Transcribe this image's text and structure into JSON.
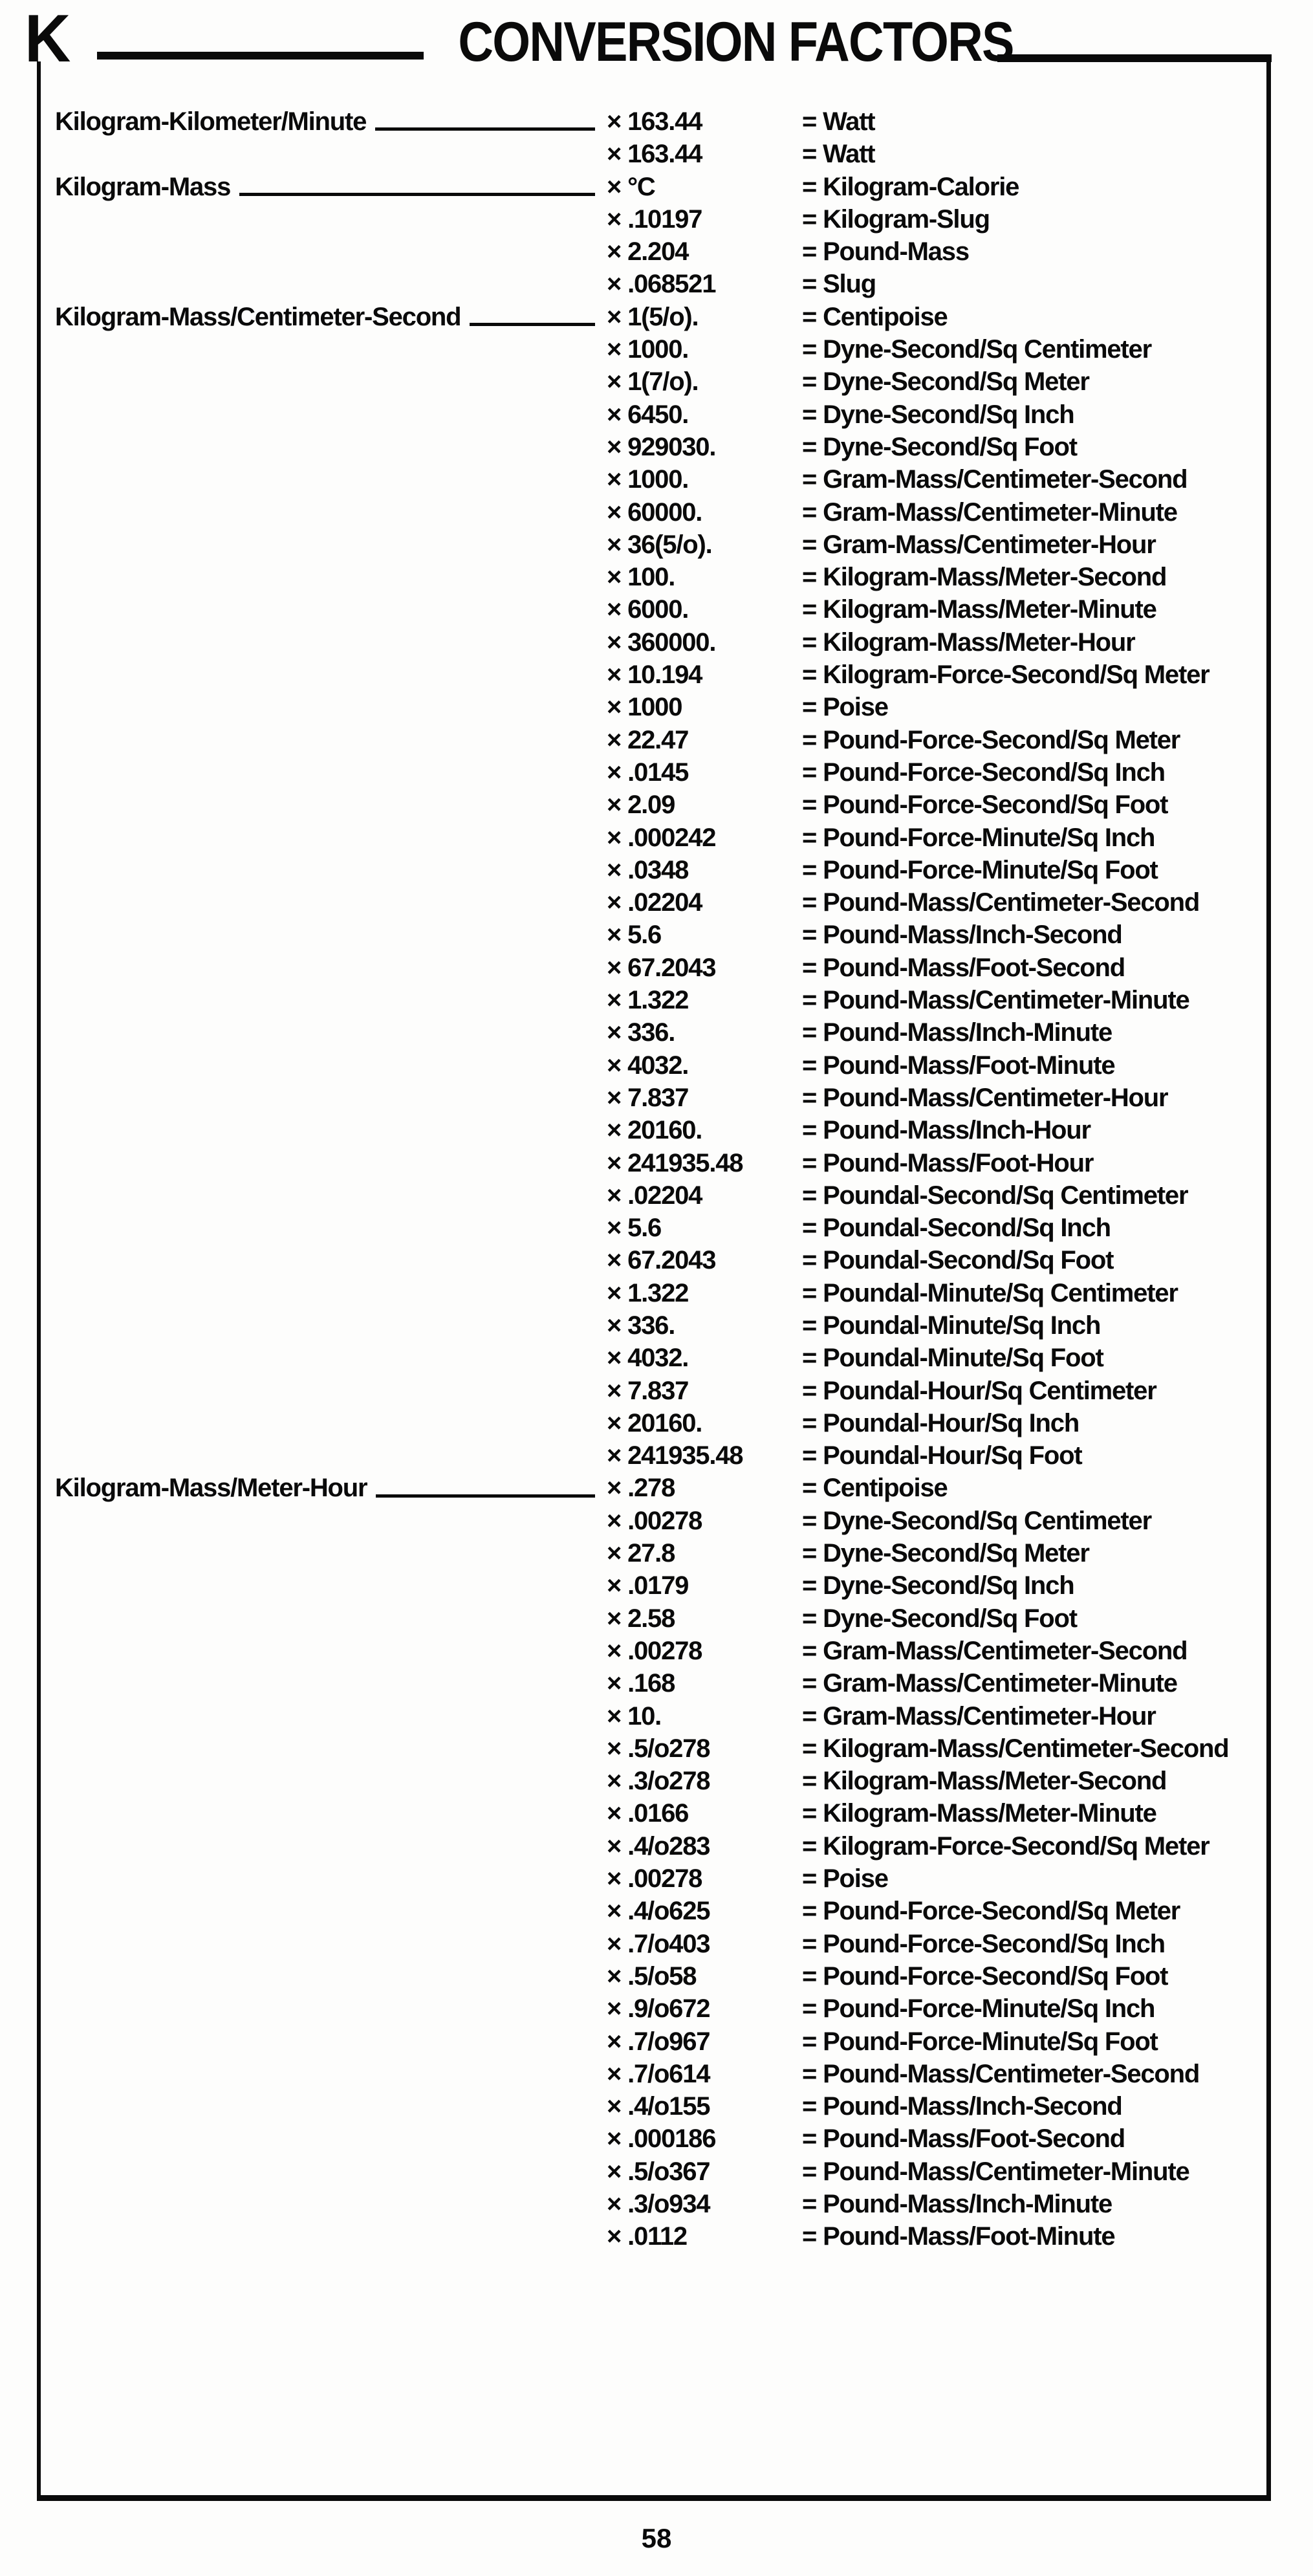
{
  "page": {
    "section_letter": "K",
    "title": "CONVERSION FACTORS",
    "page_number": "58"
  },
  "table": {
    "multiply_sign": "×",
    "equals_sign": "=",
    "rows": [
      {
        "label": "Kilogram-Kilometer/Minute",
        "factor": "163.44",
        "result": "Watt"
      },
      {
        "label": "",
        "factor": "163.44",
        "result": "Watt"
      },
      {
        "label": "Kilogram-Mass",
        "factor": "°C",
        "result": "Kilogram-Calorie"
      },
      {
        "label": "",
        "factor": ".10197",
        "result": "Kilogram-Slug"
      },
      {
        "label": "",
        "factor": "2.204",
        "result": "Pound-Mass"
      },
      {
        "label": "",
        "factor": ".068521",
        "result": "Slug"
      },
      {
        "label": "Kilogram-Mass/Centimeter-Second",
        "factor": "1(5/o).",
        "result": "Centipoise"
      },
      {
        "label": "",
        "factor": "1000.",
        "result": "Dyne-Second/Sq Centimeter"
      },
      {
        "label": "",
        "factor": "1(7/o).",
        "result": "Dyne-Second/Sq Meter"
      },
      {
        "label": "",
        "factor": "6450.",
        "result": "Dyne-Second/Sq Inch"
      },
      {
        "label": "",
        "factor": "929030.",
        "result": "Dyne-Second/Sq Foot"
      },
      {
        "label": "",
        "factor": "1000.",
        "result": "Gram-Mass/Centimeter-Second"
      },
      {
        "label": "",
        "factor": "60000.",
        "result": "Gram-Mass/Centimeter-Minute"
      },
      {
        "label": "",
        "factor": "36(5/o).",
        "result": "Gram-Mass/Centimeter-Hour"
      },
      {
        "label": "",
        "factor": "100.",
        "result": "Kilogram-Mass/Meter-Second"
      },
      {
        "label": "",
        "factor": "6000.",
        "result": "Kilogram-Mass/Meter-Minute"
      },
      {
        "label": "",
        "factor": "360000.",
        "result": "Kilogram-Mass/Meter-Hour"
      },
      {
        "label": "",
        "factor": "10.194",
        "result": "Kilogram-Force-Second/Sq Meter"
      },
      {
        "label": "",
        "factor": "1000",
        "result": "Poise"
      },
      {
        "label": "",
        "factor": "22.47",
        "result": "Pound-Force-Second/Sq Meter"
      },
      {
        "label": "",
        "factor": ".0145",
        "result": "Pound-Force-Second/Sq Inch"
      },
      {
        "label": "",
        "factor": "2.09",
        "result": "Pound-Force-Second/Sq Foot"
      },
      {
        "label": "",
        "factor": ".000242",
        "result": "Pound-Force-Minute/Sq Inch"
      },
      {
        "label": "",
        "factor": ".0348",
        "result": "Pound-Force-Minute/Sq Foot"
      },
      {
        "label": "",
        "factor": ".02204",
        "result": "Pound-Mass/Centimeter-Second"
      },
      {
        "label": "",
        "factor": "5.6",
        "result": "Pound-Mass/Inch-Second"
      },
      {
        "label": "",
        "factor": "67.2043",
        "result": "Pound-Mass/Foot-Second"
      },
      {
        "label": "",
        "factor": "1.322",
        "result": "Pound-Mass/Centimeter-Minute"
      },
      {
        "label": "",
        "factor": "336.",
        "result": "Pound-Mass/Inch-Minute"
      },
      {
        "label": "",
        "factor": "4032.",
        "result": "Pound-Mass/Foot-Minute"
      },
      {
        "label": "",
        "factor": "7.837",
        "result": "Pound-Mass/Centimeter-Hour"
      },
      {
        "label": "",
        "factor": "20160.",
        "result": "Pound-Mass/Inch-Hour"
      },
      {
        "label": "",
        "factor": "241935.48",
        "result": "Pound-Mass/Foot-Hour"
      },
      {
        "label": "",
        "factor": ".02204",
        "result": "Poundal-Second/Sq Centimeter"
      },
      {
        "label": "",
        "factor": "5.6",
        "result": "Poundal-Second/Sq Inch"
      },
      {
        "label": "",
        "factor": "67.2043",
        "result": "Poundal-Second/Sq Foot"
      },
      {
        "label": "",
        "factor": "1.322",
        "result": "Poundal-Minute/Sq Centimeter"
      },
      {
        "label": "",
        "factor": "336.",
        "result": "Poundal-Minute/Sq Inch"
      },
      {
        "label": "",
        "factor": "4032.",
        "result": "Poundal-Minute/Sq Foot"
      },
      {
        "label": "",
        "factor": "7.837",
        "result": "Poundal-Hour/Sq Centimeter"
      },
      {
        "label": "",
        "factor": "20160.",
        "result": "Poundal-Hour/Sq Inch"
      },
      {
        "label": "",
        "factor": "241935.48",
        "result": "Poundal-Hour/Sq Foot"
      },
      {
        "label": "Kilogram-Mass/Meter-Hour",
        "factor": ".278",
        "result": "Centipoise"
      },
      {
        "label": "",
        "factor": ".00278",
        "result": "Dyne-Second/Sq Centimeter"
      },
      {
        "label": "",
        "factor": "27.8",
        "result": "Dyne-Second/Sq Meter"
      },
      {
        "label": "",
        "factor": ".0179",
        "result": "Dyne-Second/Sq Inch"
      },
      {
        "label": "",
        "factor": "2.58",
        "result": "Dyne-Second/Sq Foot"
      },
      {
        "label": "",
        "factor": ".00278",
        "result": "Gram-Mass/Centimeter-Second"
      },
      {
        "label": "",
        "factor": ".168",
        "result": "Gram-Mass/Centimeter-Minute"
      },
      {
        "label": "",
        "factor": "10.",
        "result": "Gram-Mass/Centimeter-Hour"
      },
      {
        "label": "",
        "factor": ".5/o278",
        "result": "Kilogram-Mass/Centimeter-Second"
      },
      {
        "label": "",
        "factor": ".3/o278",
        "result": "Kilogram-Mass/Meter-Second"
      },
      {
        "label": "",
        "factor": ".0166",
        "result": "Kilogram-Mass/Meter-Minute"
      },
      {
        "label": "",
        "factor": ".4/o283",
        "result": "Kilogram-Force-Second/Sq Meter"
      },
      {
        "label": "",
        "factor": ".00278",
        "result": "Poise"
      },
      {
        "label": "",
        "factor": ".4/o625",
        "result": "Pound-Force-Second/Sq Meter"
      },
      {
        "label": "",
        "factor": ".7/o403",
        "result": "Pound-Force-Second/Sq Inch"
      },
      {
        "label": "",
        "factor": ".5/o58",
        "result": "Pound-Force-Second/Sq Foot"
      },
      {
        "label": "",
        "factor": ".9/o672",
        "result": "Pound-Force-Minute/Sq Inch"
      },
      {
        "label": "",
        "factor": ".7/o967",
        "result": "Pound-Force-Minute/Sq Foot"
      },
      {
        "label": "",
        "factor": ".7/o614",
        "result": "Pound-Mass/Centimeter-Second"
      },
      {
        "label": "",
        "factor": ".4/o155",
        "result": "Pound-Mass/Inch-Second"
      },
      {
        "label": "",
        "factor": ".000186",
        "result": "Pound-Mass/Foot-Second"
      },
      {
        "label": "",
        "factor": ".5/o367",
        "result": "Pound-Mass/Centimeter-Minute"
      },
      {
        "label": "",
        "factor": ".3/o934",
        "result": "Pound-Mass/Inch-Minute"
      },
      {
        "label": "",
        "factor": ".0112",
        "result": "Pound-Mass/Foot-Minute"
      }
    ]
  }
}
